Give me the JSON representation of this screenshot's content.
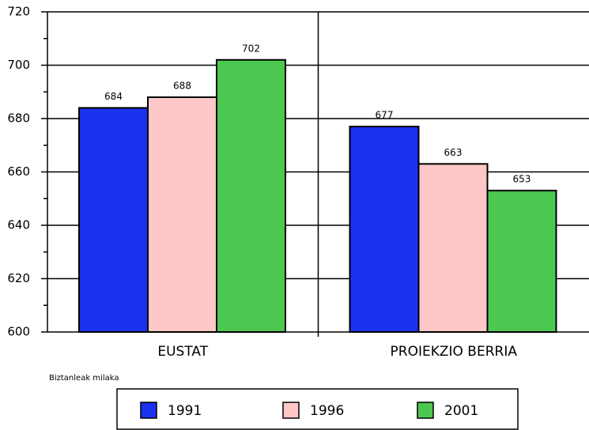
{
  "chart_data": {
    "type": "bar",
    "categories": [
      "EUSTAT",
      "PROIEKZIO BERRIA"
    ],
    "series": [
      {
        "name": "1991",
        "color": "#1a32f0",
        "values": [
          684,
          677
        ]
      },
      {
        "name": "1996",
        "color": "#ffc8c8",
        "values": [
          688,
          663
        ]
      },
      {
        "name": "2001",
        "color": "#4cc850",
        "values": [
          702,
          653
        ]
      }
    ],
    "ylim": [
      600,
      720
    ],
    "yticks": [
      600,
      620,
      640,
      660,
      680,
      700,
      720
    ],
    "grid": true,
    "axis_note": "Biztanleak milaka"
  }
}
